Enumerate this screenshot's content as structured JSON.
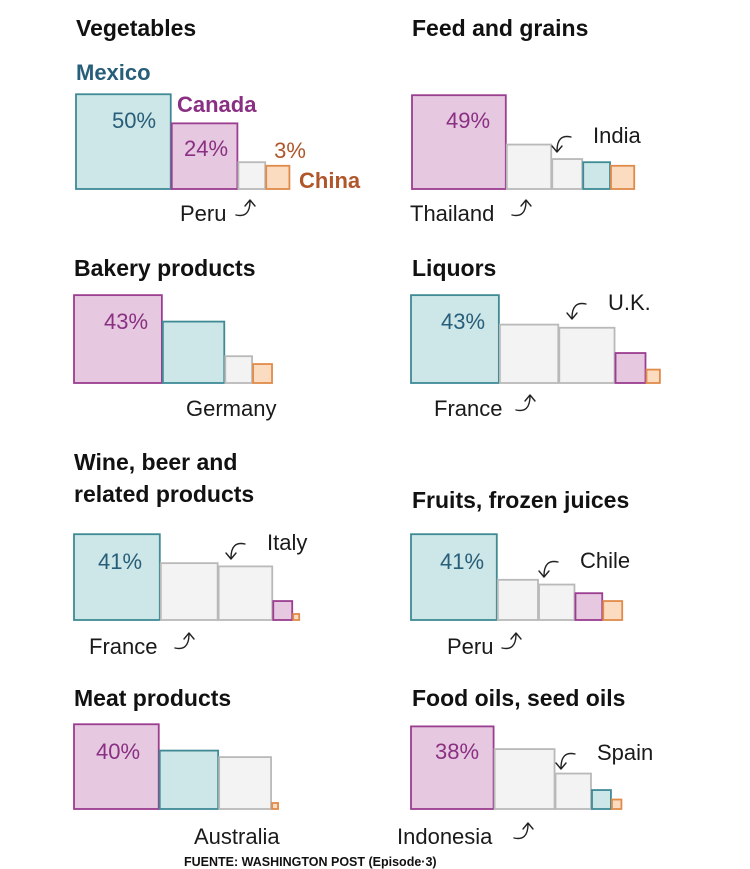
{
  "colors": {
    "Mexico": {
      "fill": "#cde6e7",
      "stroke": "#3e8a95",
      "text": "#275e79"
    },
    "Canada": {
      "fill": "#e6c8e0",
      "stroke": "#9b3d90",
      "text": "#8a3083"
    },
    "China": {
      "fill": "#fbdcc0",
      "stroke": "#e08b4a",
      "text": "#b0562b"
    },
    "Other": {
      "fill": "#f3f3f3",
      "stroke": "#b9b9b9",
      "text": "#1a1a1a"
    }
  },
  "legend": {
    "mexico": "Mexico",
    "canada": "Canada",
    "china": "China"
  },
  "source": "FUENTE: WASHINGTON POST (Episode·3)",
  "chart_data": [
    {
      "type": "bar",
      "title": "Vegetables",
      "bars": [
        {
          "country": "Mexico",
          "share": 50,
          "label": "50%"
        },
        {
          "country": "Canada",
          "share": 24,
          "label": "24%"
        },
        {
          "country": "Peru",
          "share": 4
        },
        {
          "country": "China",
          "share": 3,
          "label": "3%"
        }
      ],
      "callouts": [
        "Peru"
      ]
    },
    {
      "type": "bar",
      "title": "Feed and grains",
      "bars": [
        {
          "country": "Canada",
          "share": 49,
          "label": "49%"
        },
        {
          "country": "Thailand",
          "share": 11
        },
        {
          "country": "India",
          "share": 5
        },
        {
          "country": "Mexico",
          "share": 4
        },
        {
          "country": "China",
          "share": 3
        }
      ],
      "callouts": [
        "Thailand",
        "India"
      ]
    },
    {
      "type": "bar",
      "title": "Bakery products",
      "bars": [
        {
          "country": "Canada",
          "share": 43,
          "label": "43%"
        },
        {
          "country": "Mexico",
          "share": 21
        },
        {
          "country": "Germany",
          "share": 4
        },
        {
          "country": "China",
          "share": 2
        }
      ],
      "callouts": [
        "Germany"
      ]
    },
    {
      "type": "bar",
      "title": "Liquors",
      "bars": [
        {
          "country": "Mexico",
          "share": 43,
          "label": "43%"
        },
        {
          "country": "France",
          "share": 19
        },
        {
          "country": "U.K.",
          "share": 17
        },
        {
          "country": "Canada",
          "share": 5
        },
        {
          "country": "China",
          "share": 1
        }
      ],
      "callouts": [
        "France",
        "U.K."
      ]
    },
    {
      "type": "bar",
      "title": "Wine, beer and related products",
      "bars": [
        {
          "country": "Mexico",
          "share": 41,
          "label": "41%"
        },
        {
          "country": "France",
          "share": 18
        },
        {
          "country": "Italy",
          "share": 16
        },
        {
          "country": "Canada",
          "share": 2
        },
        {
          "country": "China",
          "share": 0.1
        }
      ],
      "callouts": [
        "France",
        "Italy"
      ]
    },
    {
      "type": "bar",
      "title": "Fruits, frozen juices",
      "bars": [
        {
          "country": "Mexico",
          "share": 41,
          "label": "41%"
        },
        {
          "country": "Peru",
          "share": 9
        },
        {
          "country": "Chile",
          "share": 7
        },
        {
          "country": "Canada",
          "share": 4
        },
        {
          "country": "China",
          "share": 2
        }
      ],
      "callouts": [
        "Peru",
        "Chile"
      ]
    },
    {
      "type": "bar",
      "title": "Meat products",
      "bars": [
        {
          "country": "Canada",
          "share": 40,
          "label": "40%"
        },
        {
          "country": "Mexico",
          "share": 19
        },
        {
          "country": "Australia",
          "share": 15
        },
        {
          "country": "China",
          "share": 0.1
        }
      ],
      "callouts": [
        "Australia"
      ]
    },
    {
      "type": "bar",
      "title": "Food oils, seed oils",
      "bars": [
        {
          "country": "Canada",
          "share": 38,
          "label": "38%"
        },
        {
          "country": "Indonesia",
          "share": 20
        },
        {
          "country": "Spain",
          "share": 7
        },
        {
          "country": "Mexico",
          "share": 2
        },
        {
          "country": "China",
          "share": 0.5
        }
      ],
      "callouts": [
        "Indonesia",
        "Spain"
      ]
    }
  ]
}
